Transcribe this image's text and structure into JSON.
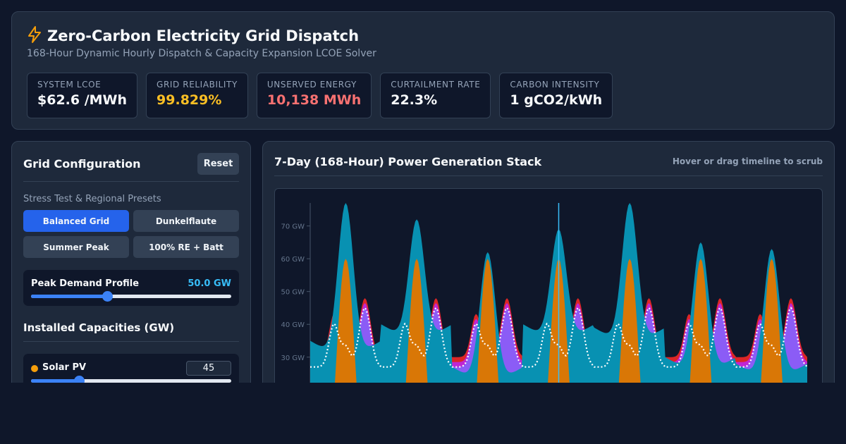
{
  "header": {
    "icon": "lightning-bolt-icon",
    "title": "Zero-Carbon Electricity Grid Dispatch",
    "subtitle": "168-Hour Dynamic Hourly Dispatch & Capacity Expansion LCOE Solver",
    "kpis": [
      {
        "label": "SYSTEM LCOE",
        "value": "$62.6 /MWh",
        "color": "#f8fafc"
      },
      {
        "label": "GRID RELIABILITY",
        "value": "99.829%",
        "color": "#fbbf24"
      },
      {
        "label": "UNSERVED ENERGY",
        "value": "10,138 MWh",
        "color": "#f87171"
      },
      {
        "label": "CURTAILMENT RATE",
        "value": "22.3%",
        "color": "#f8fafc"
      },
      {
        "label": "CARBON INTENSITY",
        "value": "1 gCO2/kWh",
        "color": "#f8fafc"
      }
    ]
  },
  "config": {
    "title": "Grid Configuration",
    "reset_label": "Reset",
    "presets_label": "Stress Test & Regional Presets",
    "presets": [
      {
        "label": "Balanced Grid",
        "active": true
      },
      {
        "label": "Dunkelflaute",
        "active": false
      },
      {
        "label": "Summer Peak",
        "active": false
      },
      {
        "label": "100% RE + Batt",
        "active": false
      }
    ],
    "peak_demand": {
      "label": "Peak Demand Profile",
      "value_text": "50.0 GW",
      "level": 0.38
    },
    "capacities_title": "Installed Capacities (GW)",
    "solar": {
      "label": "Solar PV",
      "value": "45",
      "level": 0.24,
      "color": "#f59e0b"
    }
  },
  "chart_panel": {
    "title": "7-Day (168-Hour) Power Generation Stack",
    "hint": "Hover or drag timeline to scrub"
  },
  "chart_data": {
    "type": "area",
    "x_unit": "hour",
    "x_range": [
      0,
      168
    ],
    "y_unit": "GW",
    "y_ticks": [
      "30 GW",
      "40 GW",
      "50 GW",
      "60 GW",
      "70 GW"
    ],
    "y_tick_values": [
      30,
      40,
      50,
      60,
      70
    ],
    "ylim": [
      22,
      77
    ],
    "scrub_hour": 84,
    "series": [
      {
        "color": "#0891b2",
        "base_by_day": [
          35,
          40,
          27,
          40,
          39,
          30,
          28
        ],
        "peak_by_day": [
          77,
          72,
          62,
          69,
          77,
          65,
          63
        ]
      },
      {
        "color": "#d97706",
        "peak_by_day": [
          60,
          60,
          60,
          60,
          60,
          60,
          60
        ]
      },
      {
        "color": "#8b5cf6"
      },
      {
        "color": "#c026d3"
      },
      {
        "color": "#dc2626"
      }
    ],
    "demand_line": {
      "color": "#ffffff",
      "style": "dotted",
      "trough": 27,
      "midday": 33,
      "morning_peak": 40,
      "evening_peak": 45
    }
  }
}
